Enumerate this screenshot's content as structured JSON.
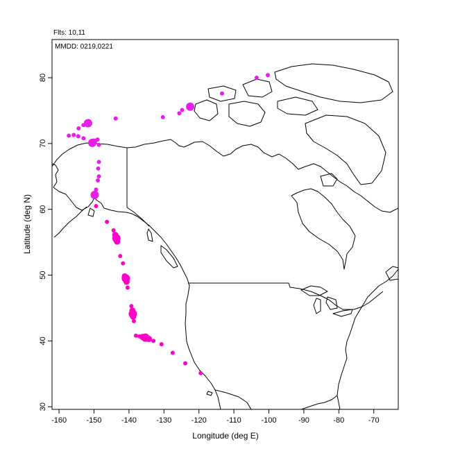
{
  "header": {
    "flights": "Flts: 10,11",
    "dates": "MMDD: 0219,0221"
  },
  "chart_data": {
    "type": "scatter",
    "xlabel": "Longitude (deg E)",
    "ylabel": "Latitude (deg N)",
    "xlim": [
      -162,
      -63
    ],
    "ylim": [
      29.6,
      85.8
    ],
    "xticks": [
      -160,
      -150,
      -140,
      -130,
      -120,
      -110,
      -100,
      -90,
      -80,
      -70
    ],
    "yticks": [
      30,
      40,
      50,
      60,
      70,
      80
    ],
    "grid": false,
    "series": [
      {
        "color": "#ff00c8",
        "points": [
          {
            "x": -119.5,
            "y": 35.1,
            "s": 2
          },
          {
            "x": -123.9,
            "y": 36.6,
            "s": 2
          },
          {
            "x": -127.5,
            "y": 38.2,
            "s": 2
          },
          {
            "x": -130.7,
            "y": 39.5,
            "s": 2
          },
          {
            "x": -133.0,
            "y": 40.0,
            "s": 2
          },
          {
            "x": -134.3,
            "y": 40.3,
            "s": 3
          },
          {
            "x": -135.3,
            "y": 40.5,
            "s": 4
          },
          {
            "x": -136.1,
            "y": 40.6,
            "s": 3
          },
          {
            "x": -137.0,
            "y": 40.7,
            "s": 2
          },
          {
            "x": -138.0,
            "y": 40.8,
            "s": 2
          },
          {
            "x": -138.6,
            "y": 43.0,
            "s": 2
          },
          {
            "x": -138.8,
            "y": 43.7,
            "s": 3
          },
          {
            "x": -138.9,
            "y": 44.1,
            "s": 4
          },
          {
            "x": -139.0,
            "y": 44.6,
            "s": 3
          },
          {
            "x": -139.3,
            "y": 45.3,
            "s": 2
          },
          {
            "x": -140.4,
            "y": 48.1,
            "s": 2
          },
          {
            "x": -140.7,
            "y": 49.0,
            "s": 3
          },
          {
            "x": -140.9,
            "y": 49.5,
            "s": 4
          },
          {
            "x": -141.2,
            "y": 49.8,
            "s": 3
          },
          {
            "x": -141.7,
            "y": 51.8,
            "s": 2
          },
          {
            "x": -142.5,
            "y": 52.9,
            "s": 2
          },
          {
            "x": -143.4,
            "y": 55.1,
            "s": 3
          },
          {
            "x": -143.6,
            "y": 55.6,
            "s": 4
          },
          {
            "x": -143.9,
            "y": 56.1,
            "s": 3
          },
          {
            "x": -144.4,
            "y": 56.8,
            "s": 2
          },
          {
            "x": -146.3,
            "y": 58.1,
            "s": 2
          },
          {
            "x": -149.4,
            "y": 60.5,
            "s": 2
          }
        ]
      },
      {
        "color": "#e61fe6",
        "points": [
          {
            "x": -149.8,
            "y": 62.2,
            "s": 4
          },
          {
            "x": -149.4,
            "y": 63.0,
            "s": 2
          },
          {
            "x": -148.9,
            "y": 64.4,
            "s": 2
          },
          {
            "x": -148.6,
            "y": 65.0,
            "s": 2
          },
          {
            "x": -148.8,
            "y": 66.2,
            "s": 2
          },
          {
            "x": -148.6,
            "y": 67.2,
            "s": 2
          },
          {
            "x": -148.6,
            "y": 69.8,
            "s": 2
          },
          {
            "x": -149.0,
            "y": 70.6,
            "s": 2
          },
          {
            "x": -150.0,
            "y": 70.3,
            "s": 3
          },
          {
            "x": -150.5,
            "y": 70.1,
            "s": 4
          },
          {
            "x": -151.0,
            "y": 70.0,
            "s": 2
          },
          {
            "x": -153.0,
            "y": 70.8,
            "s": 2
          },
          {
            "x": -154.5,
            "y": 71.1,
            "s": 2
          },
          {
            "x": -155.8,
            "y": 71.3,
            "s": 2
          },
          {
            "x": -157.2,
            "y": 71.2,
            "s": 2
          },
          {
            "x": -154.4,
            "y": 72.3,
            "s": 2
          },
          {
            "x": -153.0,
            "y": 72.8,
            "s": 2
          },
          {
            "x": -151.7,
            "y": 73.1,
            "s": 4
          },
          {
            "x": -143.8,
            "y": 73.8,
            "s": 2
          },
          {
            "x": -130.3,
            "y": 74.0,
            "s": 2
          },
          {
            "x": -125.6,
            "y": 74.6,
            "s": 2
          },
          {
            "x": -124.8,
            "y": 75.1,
            "s": 2
          },
          {
            "x": -122.5,
            "y": 75.6,
            "s": 4
          },
          {
            "x": -113.4,
            "y": 77.6,
            "s": 2
          },
          {
            "x": -103.5,
            "y": 80.0,
            "s": 2
          },
          {
            "x": -100.3,
            "y": 80.4,
            "s": 2
          }
        ]
      }
    ]
  }
}
